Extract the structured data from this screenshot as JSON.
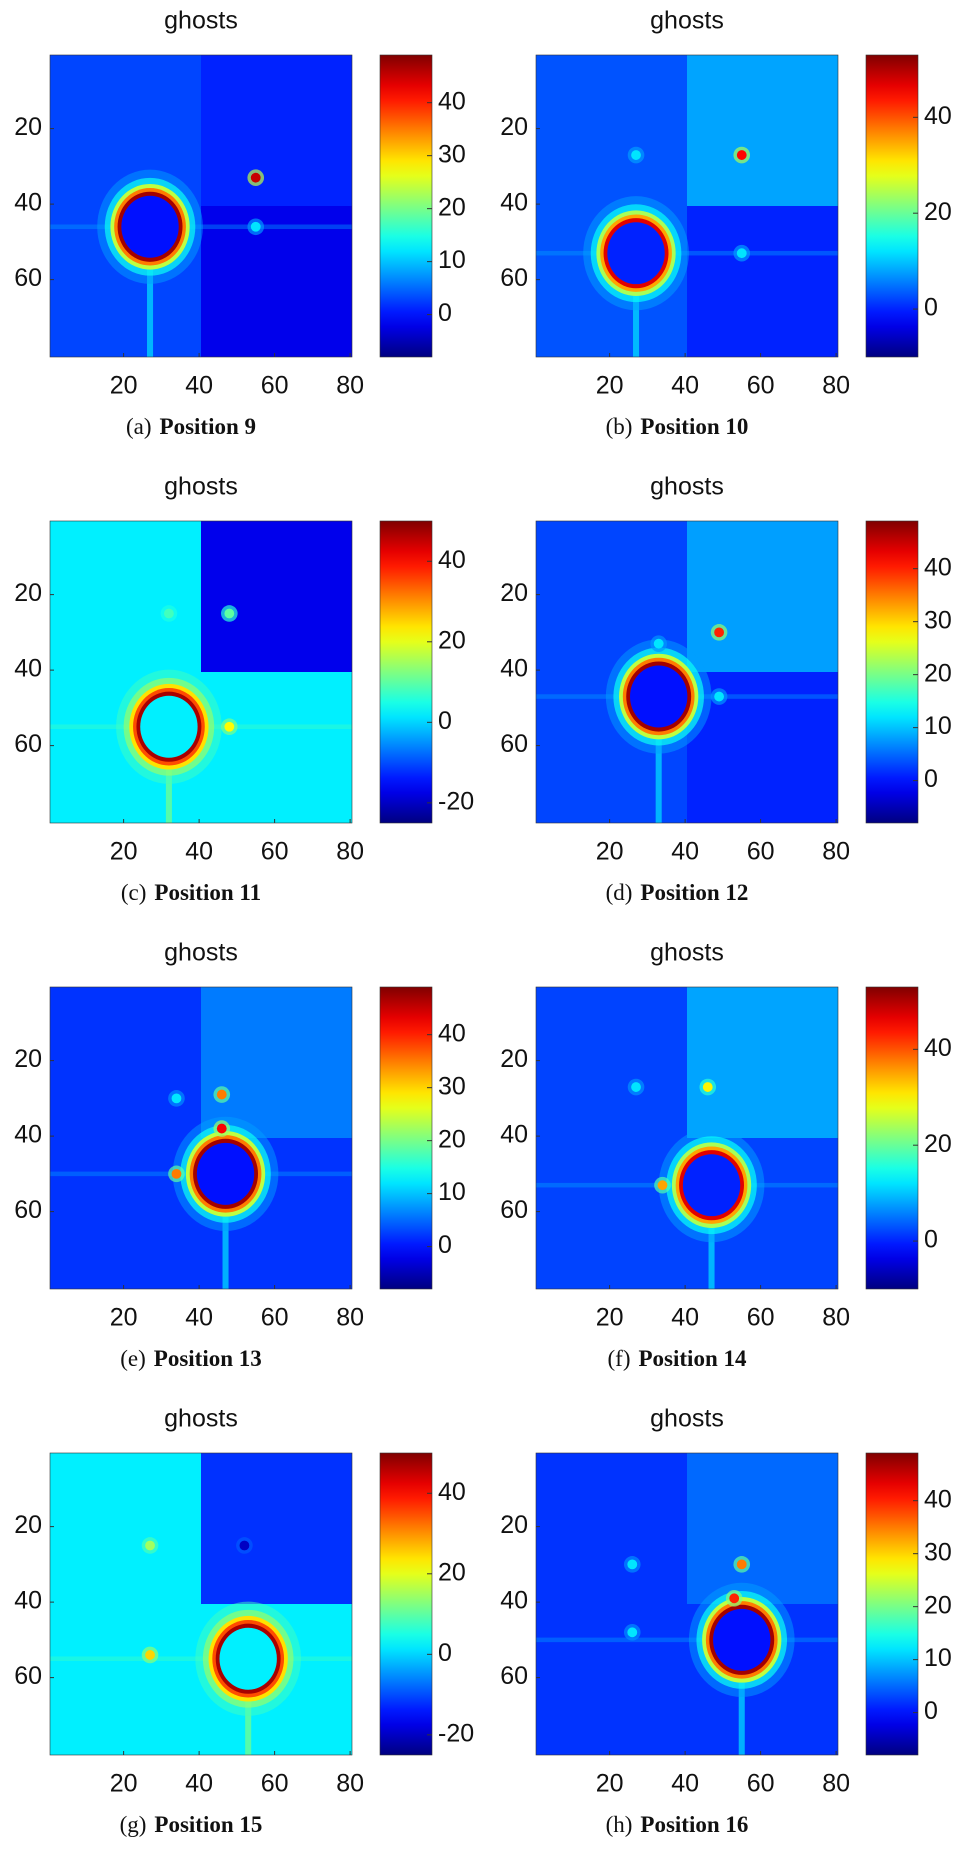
{
  "chart_data": [
    {
      "type": "heatmap",
      "title": "ghosts",
      "caption_label": "(a)",
      "caption": "Position 9",
      "colormap": "jet",
      "xlim": [
        0.5,
        80.5
      ],
      "ylim": [
        80.5,
        0.5
      ],
      "xticks": [
        20,
        40,
        60,
        80
      ],
      "yticks": [
        20,
        40,
        60
      ],
      "clim": [
        -8,
        49
      ],
      "cticks": [
        0,
        10,
        20,
        30,
        40
      ]
    },
    {
      "type": "heatmap",
      "title": "ghosts",
      "caption_label": "(b)",
      "caption": "Position 10",
      "colormap": "jet",
      "xlim": [
        0.5,
        80.5
      ],
      "ylim": [
        80.5,
        0.5
      ],
      "xticks": [
        20,
        40,
        60,
        80
      ],
      "yticks": [
        20,
        40,
        60
      ],
      "clim": [
        -10,
        53
      ],
      "cticks": [
        0,
        20,
        40
      ]
    },
    {
      "type": "heatmap",
      "title": "ghosts",
      "caption_label": "(c)",
      "caption": "Position 11",
      "colormap": "jet",
      "xlim": [
        0.5,
        80.5
      ],
      "ylim": [
        80.5,
        0.5
      ],
      "xticks": [
        20,
        40,
        60,
        80
      ],
      "yticks": [
        20,
        40,
        60
      ],
      "clim": [
        -25,
        50
      ],
      "cticks": [
        -20,
        0,
        20,
        40
      ]
    },
    {
      "type": "heatmap",
      "title": "ghosts",
      "caption_label": "(d)",
      "caption": "Position 12",
      "colormap": "jet",
      "xlim": [
        0.5,
        80.5
      ],
      "ylim": [
        80.5,
        0.5
      ],
      "xticks": [
        20,
        40,
        60,
        80
      ],
      "yticks": [
        20,
        40,
        60
      ],
      "clim": [
        -8,
        49
      ],
      "cticks": [
        0,
        10,
        20,
        30,
        40
      ]
    },
    {
      "type": "heatmap",
      "title": "ghosts",
      "caption_label": "(e)",
      "caption": "Position 13",
      "colormap": "jet",
      "xlim": [
        0.5,
        80.5
      ],
      "ylim": [
        80.5,
        0.5
      ],
      "xticks": [
        20,
        40,
        60,
        80
      ],
      "yticks": [
        20,
        40,
        60
      ],
      "clim": [
        -8,
        49
      ],
      "cticks": [
        0,
        10,
        20,
        30,
        40
      ]
    },
    {
      "type": "heatmap",
      "title": "ghosts",
      "caption_label": "(f)",
      "caption": "Position 14",
      "colormap": "jet",
      "xlim": [
        0.5,
        80.5
      ],
      "ylim": [
        80.5,
        0.5
      ],
      "xticks": [
        20,
        40,
        60,
        80
      ],
      "yticks": [
        20,
        40,
        60
      ],
      "clim": [
        -10,
        53
      ],
      "cticks": [
        0,
        20,
        40
      ]
    },
    {
      "type": "heatmap",
      "title": "ghosts",
      "caption_label": "(g)",
      "caption": "Position 15",
      "colormap": "jet",
      "xlim": [
        0.5,
        80.5
      ],
      "ylim": [
        80.5,
        0.5
      ],
      "xticks": [
        20,
        40,
        60,
        80
      ],
      "yticks": [
        20,
        40,
        60
      ],
      "clim": [
        -25,
        50
      ],
      "cticks": [
        -20,
        0,
        20,
        40
      ]
    },
    {
      "type": "heatmap",
      "title": "ghosts",
      "caption_label": "(h)",
      "caption": "Position 16",
      "colormap": "jet",
      "xlim": [
        0.5,
        80.5
      ],
      "ylim": [
        80.5,
        0.5
      ],
      "xticks": [
        20,
        40,
        60,
        80
      ],
      "yticks": [
        20,
        40,
        60
      ],
      "clim": [
        -8,
        49
      ],
      "cticks": [
        0,
        10,
        20,
        30,
        40
      ]
    }
  ]
}
